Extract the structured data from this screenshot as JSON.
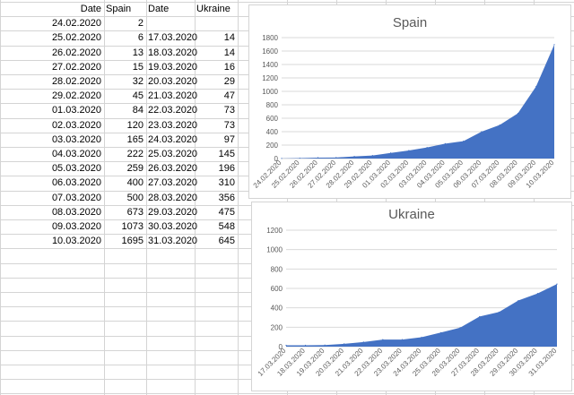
{
  "table": {
    "headers": [
      "Date",
      "Spain",
      "Date",
      "Ukraine"
    ],
    "rows": [
      [
        "24.02.2020",
        "2",
        "",
        ""
      ],
      [
        "25.02.2020",
        "6",
        "17.03.2020",
        "14"
      ],
      [
        "26.02.2020",
        "13",
        "18.03.2020",
        "14"
      ],
      [
        "27.02.2020",
        "15",
        "19.03.2020",
        "16"
      ],
      [
        "28.02.2020",
        "32",
        "20.03.2020",
        "29"
      ],
      [
        "29.02.2020",
        "45",
        "21.03.2020",
        "47"
      ],
      [
        "01.03.2020",
        "84",
        "22.03.2020",
        "73"
      ],
      [
        "02.03.2020",
        "120",
        "23.03.2020",
        "73"
      ],
      [
        "03.03.2020",
        "165",
        "24.03.2020",
        "97"
      ],
      [
        "04.03.2020",
        "222",
        "25.03.2020",
        "145"
      ],
      [
        "05.03.2020",
        "259",
        "26.03.2020",
        "196"
      ],
      [
        "06.03.2020",
        "400",
        "27.03.2020",
        "310"
      ],
      [
        "07.03.2020",
        "500",
        "28.03.2020",
        "356"
      ],
      [
        "08.03.2020",
        "673",
        "29.03.2020",
        "475"
      ],
      [
        "09.03.2020",
        "1073",
        "30.03.2020",
        "548"
      ],
      [
        "10.03.2020",
        "1695",
        "31.03.2020",
        "645"
      ]
    ]
  },
  "colors": {
    "series_fill": "#4472c4",
    "gridline": "#d9d9d9",
    "cell_border": "#d4d4d4"
  },
  "chart_data": [
    {
      "type": "area",
      "title": "Spain",
      "x": [
        "24.02.2020",
        "25.02.2020",
        "26.02.2020",
        "27.02.2020",
        "28.02.2020",
        "29.02.2020",
        "01.03.2020",
        "02.03.2020",
        "03.03.2020",
        "04.03.2020",
        "05.03.2020",
        "06.03.2020",
        "07.03.2020",
        "08.03.2020",
        "09.03.2020",
        "10.03.2020"
      ],
      "values": [
        2,
        6,
        13,
        15,
        32,
        45,
        84,
        120,
        165,
        222,
        259,
        400,
        500,
        673,
        1073,
        1695
      ],
      "yticks": [
        "0",
        "200",
        "400",
        "600",
        "800",
        "1000",
        "1200",
        "1400",
        "1600",
        "1800"
      ],
      "ylim": [
        0,
        1800
      ],
      "grid": true,
      "legend": "none"
    },
    {
      "type": "area",
      "title": "Ukraine",
      "x": [
        "17.03.2020",
        "18.03.2020",
        "19.03.2020",
        "20.03.2020",
        "21.03.2020",
        "22.03.2020",
        "23.03.2020",
        "24.03.2020",
        "25.03.2020",
        "26.03.2020",
        "27.03.2020",
        "28.03.2020",
        "29.03.2020",
        "30.03.2020",
        "31.03.2020"
      ],
      "values": [
        14,
        14,
        16,
        29,
        47,
        73,
        73,
        97,
        145,
        196,
        310,
        356,
        475,
        548,
        645
      ],
      "yticks": [
        "0",
        "200",
        "400",
        "600",
        "800",
        "1000",
        "1200"
      ],
      "ylim": [
        0,
        1200
      ],
      "grid": true,
      "legend": "none"
    }
  ]
}
